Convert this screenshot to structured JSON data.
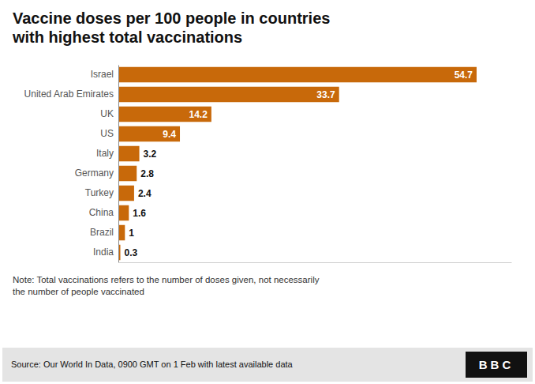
{
  "chart_data": {
    "type": "bar",
    "orientation": "horizontal",
    "title": "Vaccine doses per 100 people in countries\nwith highest total vaccinations",
    "categories": [
      "India",
      "Brazil",
      "China",
      "Turkey",
      "Germany",
      "Italy",
      "US",
      "UK",
      "United Arab Emirates",
      "Israel"
    ],
    "values": [
      0.3,
      1.0,
      1.6,
      2.4,
      2.8,
      3.2,
      9.4,
      14.2,
      33.7,
      54.7
    ],
    "color": "#C8690A",
    "xlim": [
      0,
      60
    ],
    "data_labels": true,
    "tick_labels": "y",
    "annotations": [
      "Note: Total vaccinations refers to the number of doses given, not necessarily\nthe number of people vaccinated",
      "Source: Our World In Data, 0900 GMT on 1 Feb with latest available data",
      "BBC"
    ]
  }
}
